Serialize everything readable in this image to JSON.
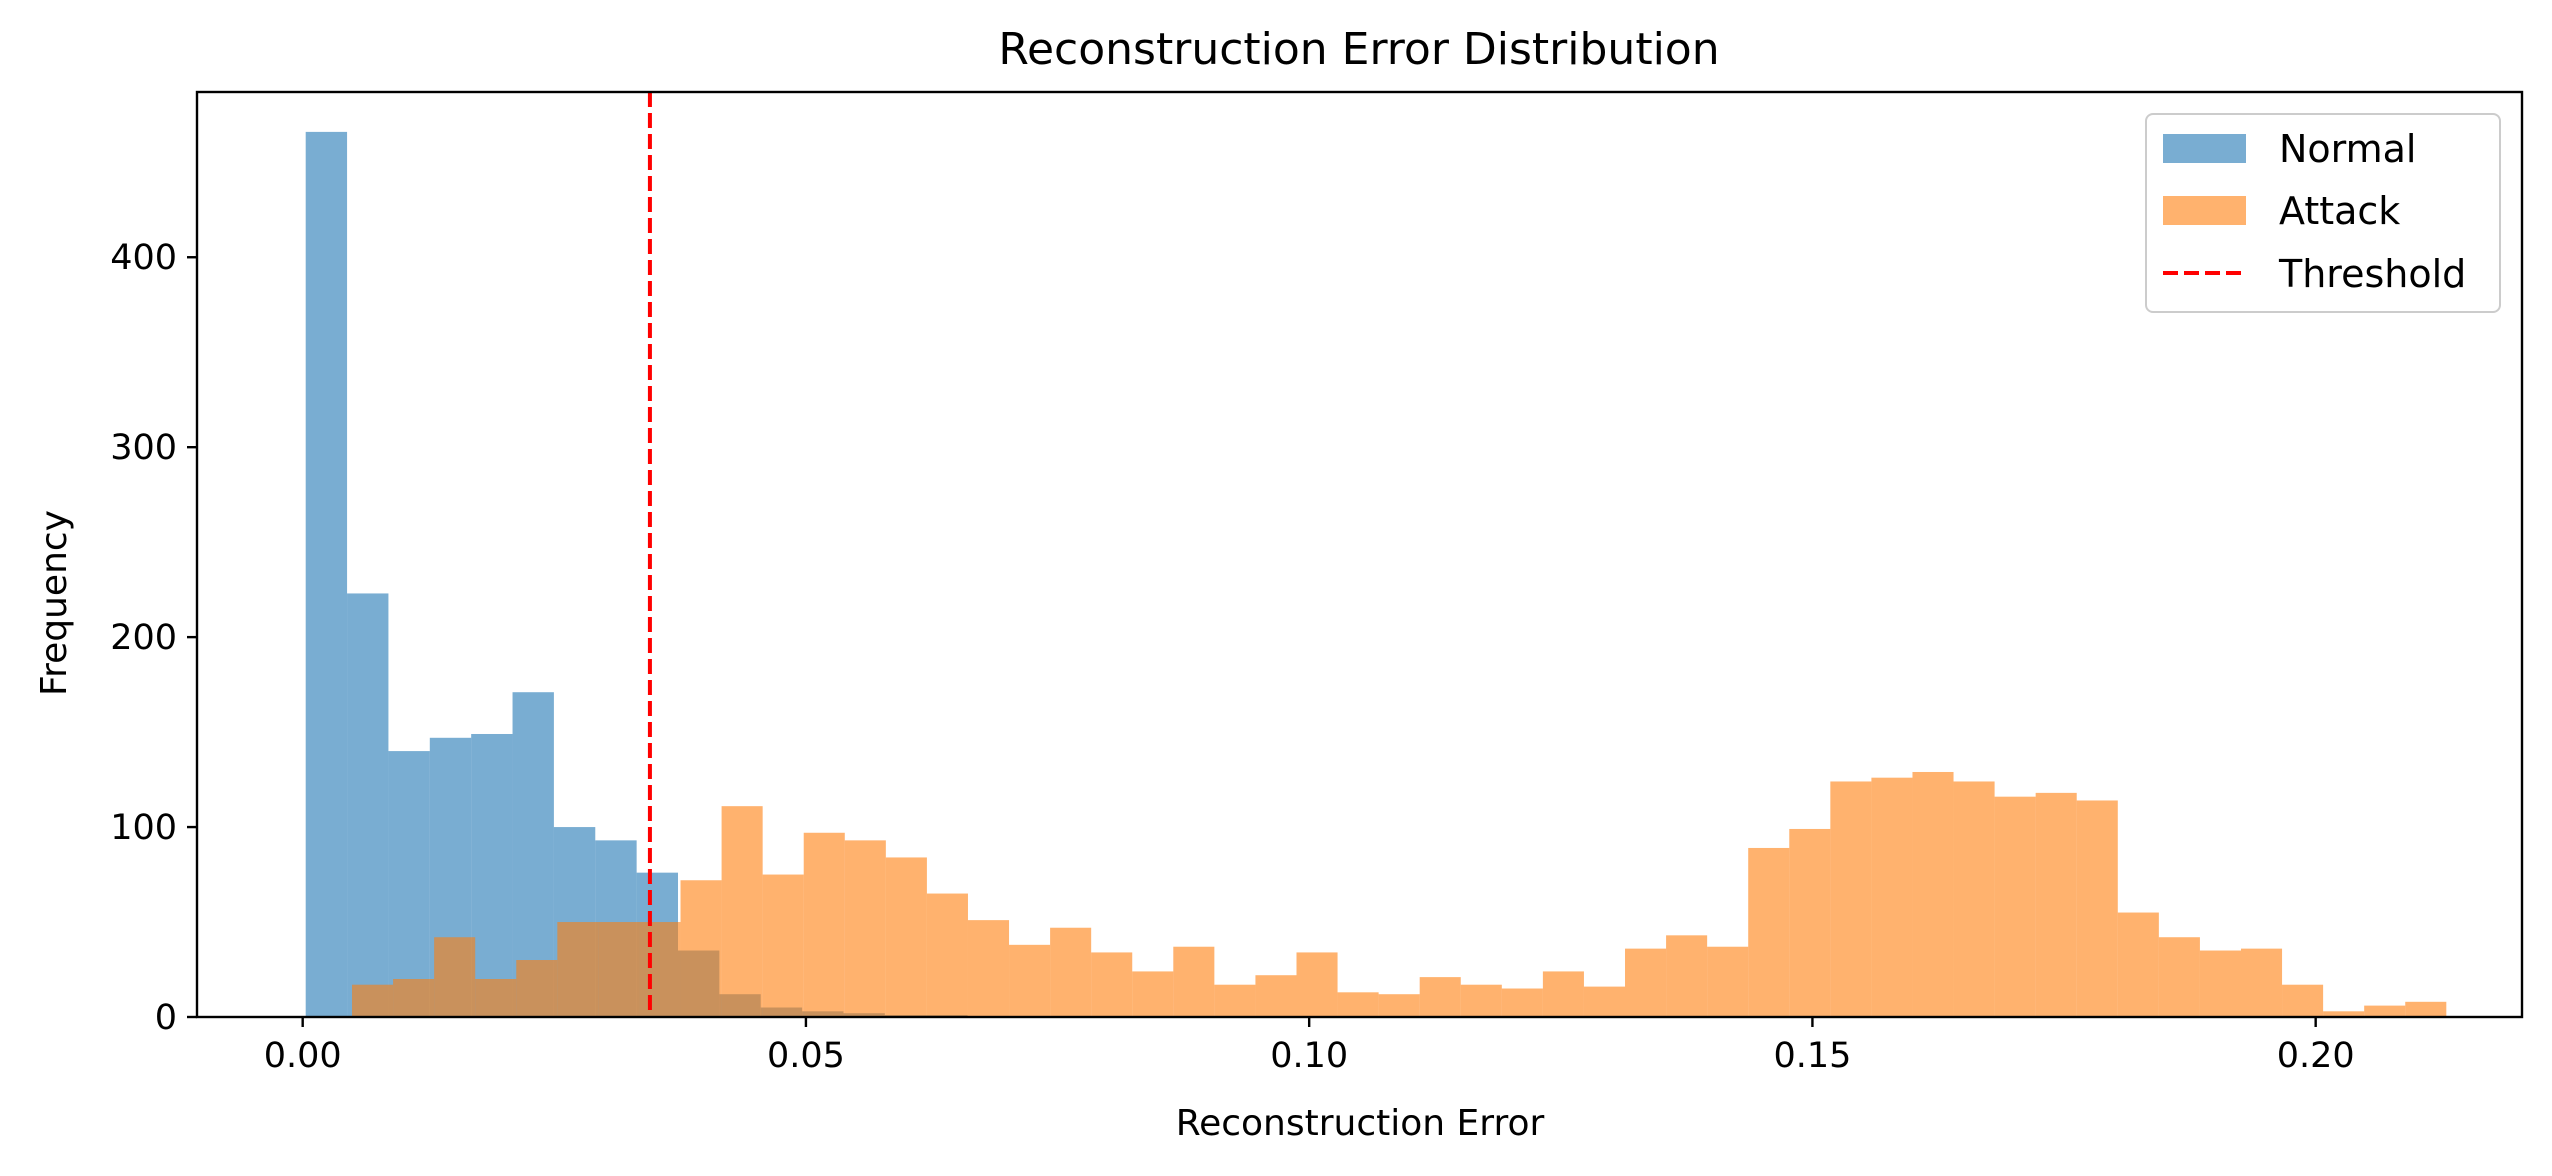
{
  "chart_data": {
    "type": "bar",
    "title": "Reconstruction Error Distribution",
    "xlabel": "Reconstruction Error",
    "ylabel": "Frequency",
    "xlim": [
      -0.0105,
      0.2205
    ],
    "ylim": [
      0,
      487
    ],
    "xticks": [
      0.0,
      0.05,
      0.1,
      0.15,
      0.2
    ],
    "xtick_labels": [
      "0.00",
      "0.05",
      "0.10",
      "0.15",
      "0.20"
    ],
    "yticks": [
      0,
      100,
      200,
      300,
      400
    ],
    "ytick_labels": [
      "0",
      "100",
      "200",
      "300",
      "400"
    ],
    "grid": false,
    "legend_position": "top-right",
    "threshold": {
      "name": "Threshold",
      "x": 0.0345,
      "color": "#ff0000",
      "style": "dashed"
    },
    "series": [
      {
        "name": "Normal",
        "color": "#1f77b4",
        "opacity": 0.6,
        "bin_start": 0.0003,
        "bin_width": 0.00411,
        "values": [
          466,
          223,
          140,
          147,
          149,
          171,
          100,
          93,
          76,
          35,
          12,
          5,
          3,
          2,
          1,
          1,
          0,
          0,
          0,
          0
        ]
      },
      {
        "name": "Attack",
        "color": "#ff7f0e",
        "opacity": 0.6,
        "bin_start": 0.0049,
        "bin_width": 0.00408,
        "values": [
          17,
          20,
          42,
          20,
          30,
          50,
          50,
          50,
          72,
          111,
          75,
          97,
          93,
          84,
          65,
          51,
          38,
          47,
          34,
          24,
          37,
          17,
          22,
          34,
          13,
          12,
          21,
          17,
          15,
          24,
          16,
          36,
          43,
          37,
          89,
          99,
          124,
          126,
          129,
          124,
          116,
          118,
          114,
          55,
          42,
          35,
          36,
          17,
          3,
          6,
          8
        ]
      }
    ]
  }
}
